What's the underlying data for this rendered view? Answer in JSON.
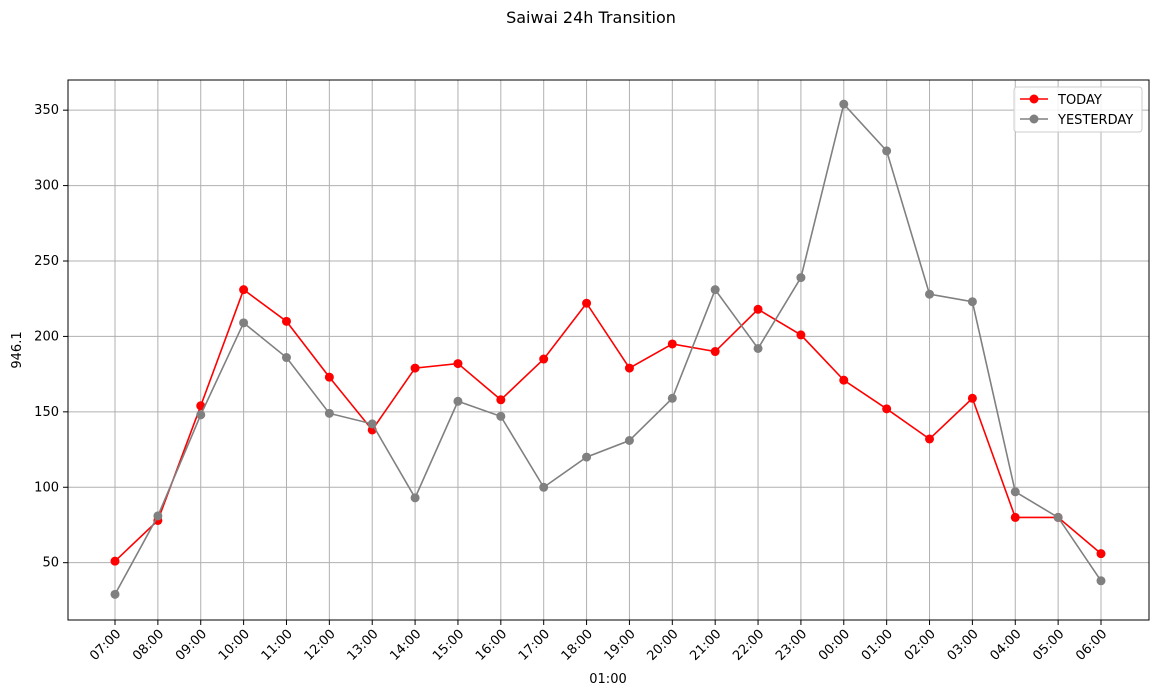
{
  "chart_data": {
    "type": "line",
    "title": "Saiwai 24h Transition",
    "xlabel": "01:00",
    "ylabel": "946.1",
    "categories": [
      "07:00",
      "08:00",
      "09:00",
      "10:00",
      "11:00",
      "12:00",
      "13:00",
      "14:00",
      "15:00",
      "16:00",
      "17:00",
      "18:00",
      "19:00",
      "20:00",
      "21:00",
      "22:00",
      "23:00",
      "00:00",
      "01:00",
      "02:00",
      "03:00",
      "04:00",
      "05:00",
      "06:00"
    ],
    "yticks": [
      50,
      100,
      150,
      200,
      250,
      300,
      350
    ],
    "ylim": [
      12,
      370
    ],
    "grid": true,
    "legend_position": "top-right",
    "series": [
      {
        "name": "TODAY",
        "color": "#ff0000",
        "values": [
          51,
          78,
          154,
          231,
          210,
          173,
          138,
          179,
          182,
          158,
          185,
          222,
          179,
          195,
          190,
          218,
          201,
          171,
          152,
          132,
          159,
          80,
          80,
          56
        ]
      },
      {
        "name": "YESTERDAY",
        "color": "#808080",
        "values": [
          29,
          81,
          148,
          209,
          186,
          149,
          142,
          93,
          157,
          147,
          100,
          120,
          131,
          159,
          231,
          192,
          239,
          354,
          323,
          228,
          223,
          97,
          80,
          38
        ]
      }
    ]
  }
}
